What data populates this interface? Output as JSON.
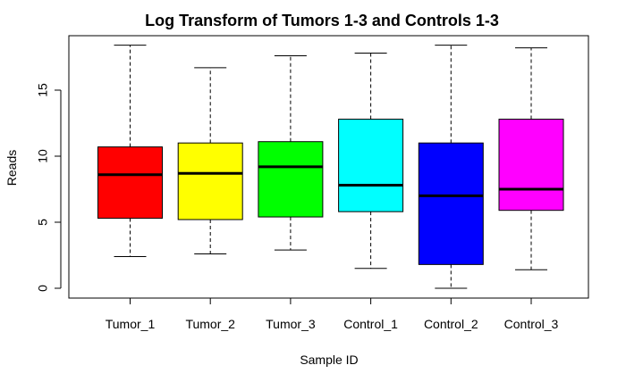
{
  "chart_data": {
    "type": "boxplot",
    "title": "Log Transform of Tumors 1-3 and Controls 1-3",
    "xlabel": "Sample ID",
    "ylabel": "Reads",
    "ylim": [
      -1.1,
      19.2
    ],
    "yticks": [
      0,
      5,
      10,
      15
    ],
    "grid": false,
    "legend": "none",
    "categories": [
      "Tumor_1",
      "Tumor_2",
      "Tumor_3",
      "Control_1",
      "Control_2",
      "Control_3"
    ],
    "series": [
      {
        "name": "Tumor_1",
        "color": "#ff0000",
        "min": 2.4,
        "q1": 5.3,
        "median": 8.6,
        "q3": 10.7,
        "max": 18.4
      },
      {
        "name": "Tumor_2",
        "color": "#ffff00",
        "min": 2.6,
        "q1": 5.2,
        "median": 8.7,
        "q3": 11.0,
        "max": 16.7
      },
      {
        "name": "Tumor_3",
        "color": "#00ff00",
        "min": 2.9,
        "q1": 5.4,
        "median": 9.2,
        "q3": 11.1,
        "max": 17.6
      },
      {
        "name": "Control_1",
        "color": "#00ffff",
        "min": 1.5,
        "q1": 5.8,
        "median": 7.8,
        "q3": 12.8,
        "max": 17.8
      },
      {
        "name": "Control_2",
        "color": "#0000ff",
        "min": 0.0,
        "q1": 1.8,
        "median": 7.0,
        "q3": 11.0,
        "max": 18.4
      },
      {
        "name": "Control_3",
        "color": "#ff00ff",
        "min": 1.4,
        "q1": 5.9,
        "median": 7.5,
        "q3": 12.8,
        "max": 18.2
      }
    ]
  }
}
